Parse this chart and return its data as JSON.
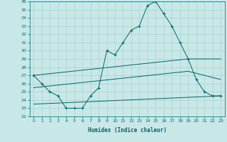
{
  "xlabel": "Humidex (Indice chaleur)",
  "bg_color": "#c8e8e8",
  "grid_color": "#a8d0d0",
  "line_color": "#006666",
  "xlim": [
    -0.5,
    23.5
  ],
  "ylim": [
    22,
    36
  ],
  "series": [
    {
      "x": [
        0,
        1,
        2,
        3,
        4,
        5,
        6,
        7,
        8,
        9,
        10,
        11,
        12,
        13,
        14,
        15,
        16,
        17,
        18,
        19,
        20,
        21,
        22,
        23
      ],
      "y": [
        27,
        26,
        25,
        24.5,
        23,
        23,
        23,
        24.5,
        25.5,
        30,
        29.5,
        31,
        32.5,
        33,
        35.5,
        36,
        34.5,
        33,
        31,
        29,
        26.5,
        25,
        24.5,
        24.5
      ],
      "marker": true
    },
    {
      "x": [
        0,
        19,
        23
      ],
      "y": [
        27,
        29,
        29
      ],
      "marker": false
    },
    {
      "x": [
        0,
        19,
        23
      ],
      "y": [
        25.5,
        27.5,
        26.5
      ],
      "marker": false
    },
    {
      "x": [
        0,
        23
      ],
      "y": [
        23.5,
        24.5
      ],
      "marker": false
    }
  ]
}
